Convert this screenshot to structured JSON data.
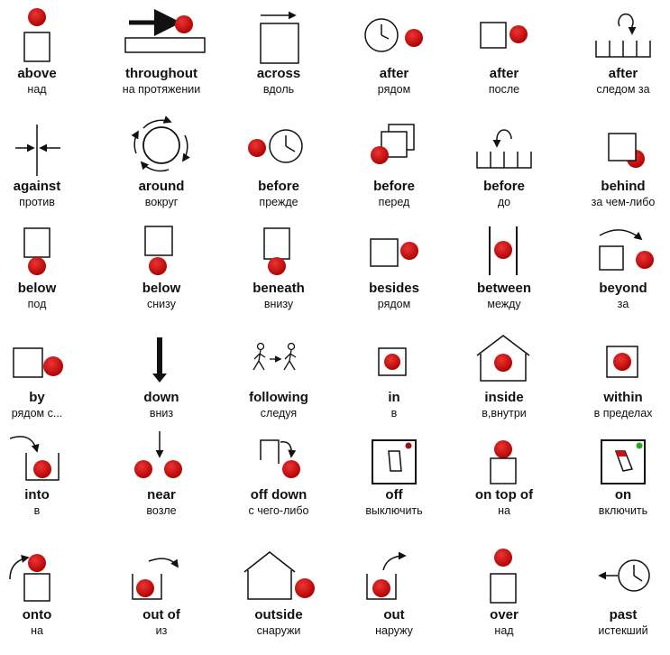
{
  "colors": {
    "ball": "#cc1111",
    "ink": "#111111",
    "green_dot": "#22aa22",
    "dark_red_dot": "#991111"
  },
  "cards": [
    {
      "en": "above",
      "ru": "над",
      "icon": "ball-above-box-icon"
    },
    {
      "en": "throughout",
      "ru": "на протяжении",
      "icon": "arrow-along-bar-icon"
    },
    {
      "en": "across",
      "ru": "вдоль",
      "icon": "arrow-across-box-icon"
    },
    {
      "en": "after",
      "ru": "рядом",
      "icon": "clock-then-ball-icon"
    },
    {
      "en": "after",
      "ru": "после",
      "icon": "box-then-ball-icon"
    },
    {
      "en": "after",
      "ru": "следом за",
      "icon": "arrow-over-slots-icon"
    },
    {
      "en": "against",
      "ru": "против",
      "icon": "arrows-against-line-icon"
    },
    {
      "en": "around",
      "ru": "вокруг",
      "icon": "circle-with-arrows-icon"
    },
    {
      "en": "before",
      "ru": "прежде",
      "icon": "ball-then-clock-icon"
    },
    {
      "en": "before",
      "ru": "перед",
      "icon": "ball-before-stacked-boxes-icon"
    },
    {
      "en": "before",
      "ru": "до",
      "icon": "arrow-back-over-slots-icon"
    },
    {
      "en": "behind",
      "ru": "за чем-либо",
      "icon": "ball-behind-box-icon"
    },
    {
      "en": "below",
      "ru": "под",
      "icon": "ball-below-box-icon"
    },
    {
      "en": "below",
      "ru": "снизу",
      "icon": "ball-below-box-gap-icon"
    },
    {
      "en": "beneath",
      "ru": "внизу",
      "icon": "ball-beneath-box-icon"
    },
    {
      "en": "besides",
      "ru": "рядом",
      "icon": "ball-beside-box-icon"
    },
    {
      "en": "between",
      "ru": "между",
      "icon": "ball-between-lines-icon"
    },
    {
      "en": "beyond",
      "ru": "за",
      "icon": "arrow-beyond-box-icon"
    },
    {
      "en": "by",
      "ru": "рядом с...",
      "icon": "ball-by-box-icon"
    },
    {
      "en": "down",
      "ru": "вниз",
      "icon": "arrow-down-icon"
    },
    {
      "en": "following",
      "ru": "следуя",
      "icon": "walkers-following-icon"
    },
    {
      "en": "in",
      "ru": "в",
      "icon": "ball-in-box-icon"
    },
    {
      "en": "inside",
      "ru": "в,внутри",
      "icon": "ball-inside-house-icon"
    },
    {
      "en": "within",
      "ru": "в пределах",
      "icon": "ball-within-box-icon"
    },
    {
      "en": "into",
      "ru": "в",
      "icon": "arrow-into-container-icon"
    },
    {
      "en": "near",
      "ru": "возле",
      "icon": "two-balls-near-icon"
    },
    {
      "en": "off down",
      "ru": "с чего-либо",
      "icon": "arrow-off-down-icon"
    },
    {
      "en": "off",
      "ru": "выключить",
      "icon": "switch-off-icon"
    },
    {
      "en": "on top of",
      "ru": "на",
      "icon": "ball-on-top-box-icon"
    },
    {
      "en": "on",
      "ru": "включить",
      "icon": "switch-on-icon"
    },
    {
      "en": "onto",
      "ru": "на",
      "icon": "arrow-onto-box-icon"
    },
    {
      "en": "out of",
      "ru": "из",
      "icon": "arrow-out-of-container-icon"
    },
    {
      "en": "outside",
      "ru": "снаружи",
      "icon": "ball-outside-house-icon"
    },
    {
      "en": "out",
      "ru": "наружу",
      "icon": "arrow-out-container-icon"
    },
    {
      "en": "over",
      "ru": "над",
      "icon": "ball-over-box-icon"
    },
    {
      "en": "past",
      "ru": "истекший",
      "icon": "arrow-past-clock-icon"
    }
  ]
}
